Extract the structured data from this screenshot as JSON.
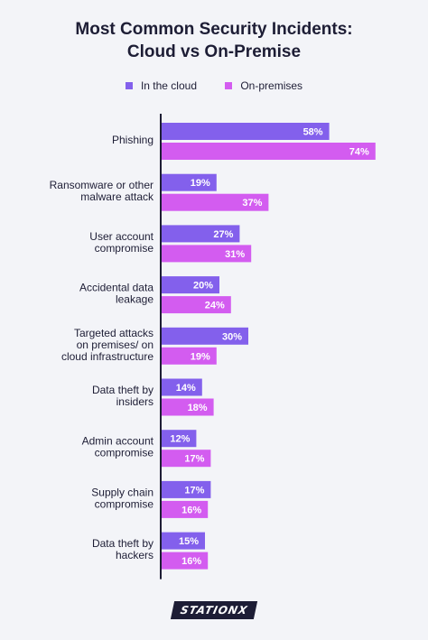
{
  "header": {
    "title_line1": "Most Common Security Incidents:",
    "title_line2": "Cloud vs On-Premise"
  },
  "colors": {
    "cloud": "#8360ec",
    "onprem": "#d35cf0",
    "axis": "#1d1d35",
    "text": "#1d1d35"
  },
  "footer": {
    "logo_text": "STATIONX"
  },
  "chart_data": {
    "type": "bar",
    "orientation": "horizontal",
    "title": "Most Common Security Incidents: Cloud vs On-Premise",
    "legend_position": "top-center",
    "grid": false,
    "value_suffix": "%",
    "xlim": [
      0,
      80
    ],
    "categories": [
      [
        "Phishing"
      ],
      [
        "Ransomware or other",
        "malware attack"
      ],
      [
        "User account",
        "compromise"
      ],
      [
        "Accidental data",
        "leakage"
      ],
      [
        "Targeted attacks",
        "on premises/ on",
        "cloud infrastructure"
      ],
      [
        "Data theft by",
        "insiders"
      ],
      [
        "Admin account",
        "compromise"
      ],
      [
        "Supply chain",
        "compromise"
      ],
      [
        "Data theft by",
        "hackers"
      ]
    ],
    "series": [
      {
        "name": "In the cloud",
        "values": [
          58,
          19,
          27,
          20,
          30,
          14,
          12,
          17,
          15
        ]
      },
      {
        "name": "On-premises",
        "values": [
          74,
          37,
          31,
          24,
          19,
          18,
          17,
          16,
          16
        ]
      }
    ]
  }
}
